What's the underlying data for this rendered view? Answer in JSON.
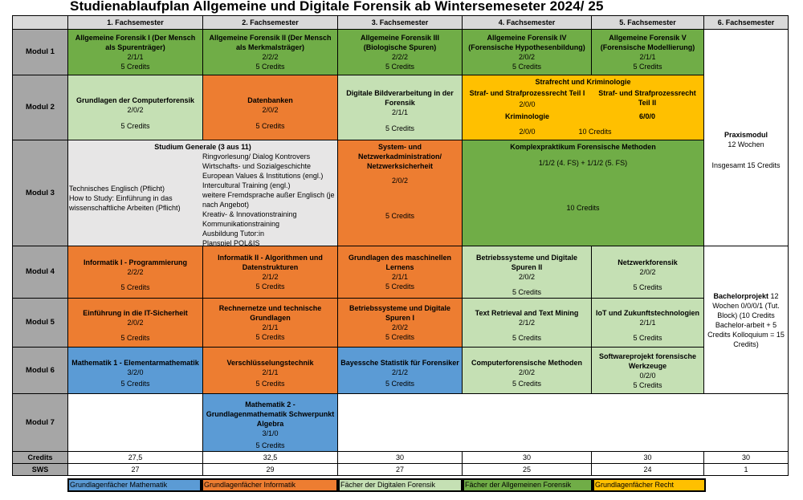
{
  "title": "Studienablaufplan Allgemeine und Digitale Forensik ab Wintersemeseter 2024/ 25",
  "headers": [
    "",
    "1. Fachsemester",
    "2. Fachsemester",
    "3. Fachsemester",
    "4. Fachsemester",
    "5. Fachsemester",
    "6. Fachsemester"
  ],
  "rows": {
    "m1": "Modul 1",
    "m2": "Modul 2",
    "m3": "Modul 3",
    "m4": "Modul 4",
    "m5": "Modul 5",
    "m6": "Modul 6",
    "m7": "Modul 7",
    "credits": "Credits",
    "sws": "SWS"
  },
  "modules": {
    "m1s1": {
      "name": "Allgemeine Forensik I (Der Mensch als Spurenträger)",
      "sws": "2/1/1",
      "credits": "5 Credits"
    },
    "m1s2": {
      "name": "Allgemeine Forensik II (Der Mensch als Merkmalsträger)",
      "sws": "2/2/2",
      "credits": "5 Credits"
    },
    "m1s3": {
      "name": "Allgemeine Forensik III (Biologische Spuren)",
      "sws": "2/2/2",
      "credits": "5 Credits"
    },
    "m1s4": {
      "name": "Allgemeine Forensik IV (Forensische Hypothesenbildung)",
      "sws": "2/0/2",
      "credits": "5 Credits"
    },
    "m1s5": {
      "name": "Allgemeine Forensik V (Forensische Modellierung)",
      "sws": "2/1/1",
      "credits": "5 Credits"
    },
    "m2s1": {
      "name": "Grundlagen der Computerforensik",
      "sws": "2/0/2",
      "credits": "5 Credits"
    },
    "m2s2": {
      "name": "Datenbanken",
      "sws": "2/0/2",
      "credits": "5 Credits"
    },
    "m2s3": {
      "name": "Digitale Bildverarbeitung in der Forensik",
      "sws": "2/1/1",
      "credits": "5 Credits"
    },
    "m2s45": {
      "name": "Strafrecht und Kriminologie",
      "sub1": "Straf- und Strafprozessrecht Teil I",
      "sub1_sws": "2/0/0",
      "sub2": "Straf- und Strafprozessrecht Teil II",
      "sub2_sws": "6/0/0",
      "sub3": "Kriminologie",
      "sub3_sws": "2/0/0",
      "credits": "10 Credits"
    },
    "m3s12": {
      "name": "Studium Generale (3 aus 11)",
      "left": [
        "Technisches Englisch (Pflicht)",
        "How to Study: Einführung in das wissenschaftliche Arbeiten (Pflicht)"
      ],
      "right": [
        "Ringvorlesung/ Dialog Kontrovers",
        "Wirtschafts- und Sozialgeschichte",
        "European Values & Institutions (engl.)",
        "Intercultural Training (engl.)",
        "weitere Fremdsprache außer Englisch (je nach Angebot)",
        "Kreativ- & Innovationstraining",
        "Kommunikationstraining",
        "Ausbildung Tutor:in",
        "Planspiel POL&IS"
      ]
    },
    "m3s3": {
      "name": "System- und Netzwerkadministration/ Netzwerksicherheit",
      "sws": "2/0/2",
      "credits": "5 Credits"
    },
    "m3s45": {
      "name": "Komplexpraktikum Forensische Methoden",
      "sws": "1/1/2 (4. FS) + 1/1/2 (5. FS)",
      "credits": "10 Credits"
    },
    "m4s1": {
      "name": "Informatik I - Programmierung",
      "sws": "2/2/2",
      "credits": "5 Credits"
    },
    "m4s2": {
      "name": "Informatik II - Algorithmen und Datenstrukturen",
      "sws": "2/1/2",
      "credits": "5 Credits"
    },
    "m4s3": {
      "name": "Grundlagen des maschinellen Lernens",
      "sws": "2/1/1",
      "credits": "5 Credits"
    },
    "m4s4": {
      "name": "Betriebssysteme und Digitale Spuren II",
      "sws": "2/0/2",
      "credits": "5 Credits"
    },
    "m4s5": {
      "name": "Netzwerkforensik",
      "sws": "2/0/2",
      "credits": "5 Credits"
    },
    "m5s1": {
      "name": "Einführung in die IT-Sicherheit",
      "sws": "2/0/2",
      "credits": "5 Credits"
    },
    "m5s2": {
      "name": "Rechnernetze und technische Grundlagen",
      "sws": "2/1/1",
      "credits": "5 Credits"
    },
    "m5s3": {
      "name": "Betriebssysteme und Digitale Spuren I",
      "sws": "2/0/2",
      "credits": "5 Credits"
    },
    "m5s4": {
      "name": "Text Retrieval and Text Mining",
      "sws": "2/1/2",
      "credits": "5 Credits"
    },
    "m5s5": {
      "name": "IoT und Zukunftstechnologien",
      "sws": "2/1/1",
      "credits": "5 Credits"
    },
    "m6s1": {
      "name": "Mathematik 1 - Elementarmathematik",
      "sws": "3/2/0",
      "credits": "5 Credits"
    },
    "m6s2": {
      "name": "Verschlüsselungstechnik",
      "sws": "2/1/1",
      "credits": "5 Credits"
    },
    "m6s3": {
      "name": "Bayessche Statistik für Forensiker",
      "sws": "2/1/2",
      "credits": "5 Credits"
    },
    "m6s4": {
      "name": "Computerforensische Methoden",
      "sws": "2/0/2",
      "credits": "5 Credits"
    },
    "m6s5": {
      "name": "Softwareprojekt forensische Werkzeuge",
      "sws": "0/2/0",
      "credits": "5 Credits"
    },
    "m7s2": {
      "name": "Mathematik 2 - Grundlagenmathematik Schwerpunkt Algebra",
      "sws": "3/1/0",
      "credits": "5 Credits"
    },
    "praxis": {
      "name": "Praxismodul",
      "weeks": "12 Wochen",
      "credits": "Insgesamt 15 Credits"
    },
    "bachelor": {
      "name": "Bachelorprojekt",
      "rest": " 12 Wochen 0/0/0/1 (Tut. Block) (10 Credits Bachelor-arbeit + 5 Credits Kolloquium = 15 Credits)"
    }
  },
  "credits_row": [
    "27,5",
    "32,5",
    "30",
    "30",
    "30",
    "30"
  ],
  "sws_row": [
    "27",
    "29",
    "27",
    "25",
    "24",
    "1"
  ],
  "legend": [
    {
      "label": "Grundlagenfächer Mathematik",
      "color": "#5b9bd5"
    },
    {
      "label": "Grundlagenfächer Informatik",
      "color": "#ed7d31"
    },
    {
      "label": "Fächer der Digitalen Forensik",
      "color": "#c5e0b4"
    },
    {
      "label": "Fächer der Allgemeinen Forensik",
      "color": "#70ad47"
    },
    {
      "label": "Grundlagenfächer Recht",
      "color": "#ffc000"
    }
  ]
}
